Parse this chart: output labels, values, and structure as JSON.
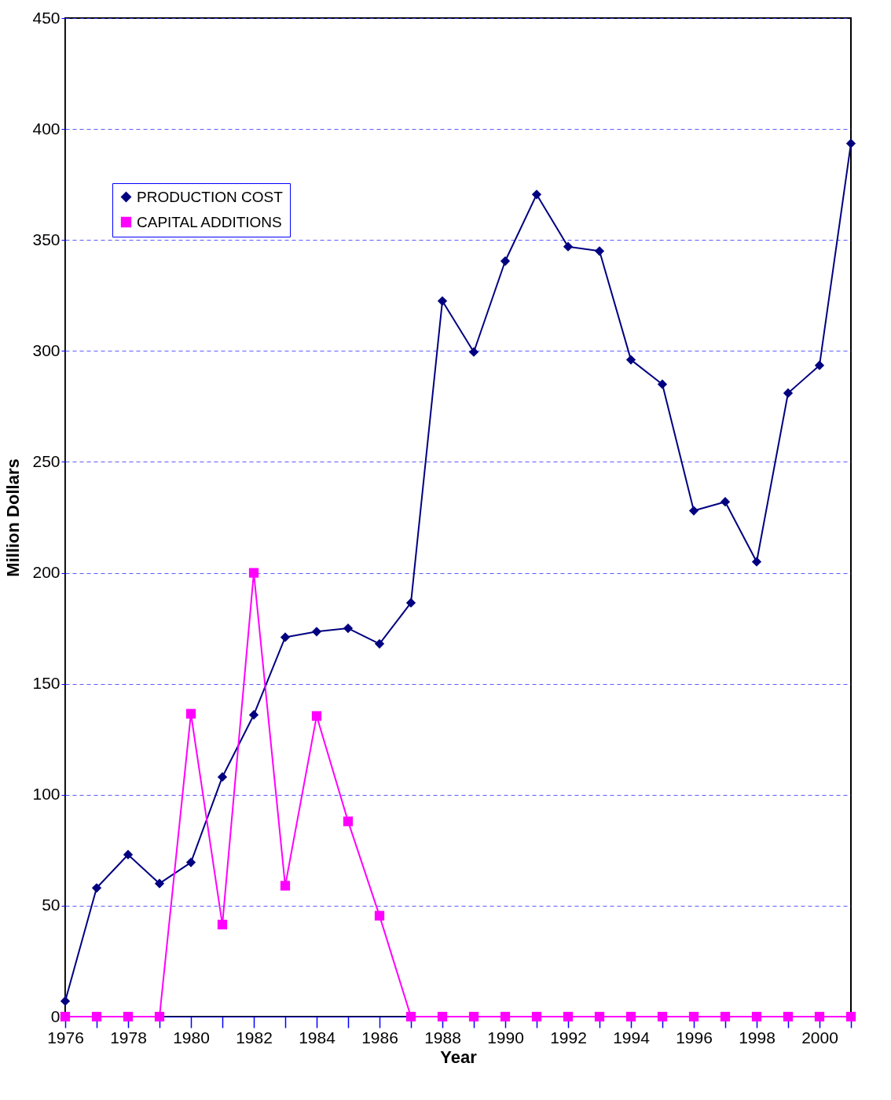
{
  "chart_data": {
    "type": "line",
    "xlabel": "Year",
    "ylabel": "Million Dollars",
    "x": [
      1976,
      1977,
      1978,
      1979,
      1980,
      1981,
      1982,
      1983,
      1984,
      1985,
      1986,
      1987,
      1988,
      1989,
      1990,
      1991,
      1992,
      1993,
      1994,
      1995,
      1996,
      1997,
      1998,
      1999,
      2000,
      2001
    ],
    "series": [
      {
        "name": "PRODUCTION COST",
        "color": "#000080",
        "marker": "diamond",
        "values": [
          7,
          58,
          73,
          60,
          69.5,
          108,
          136,
          171,
          173.5,
          175,
          168,
          186.5,
          322.5,
          299.5,
          340.5,
          370.5,
          347,
          345,
          296,
          285,
          228,
          232,
          205,
          281,
          293.5,
          393.5
        ]
      },
      {
        "name": "CAPITAL ADDITIONS",
        "color": "#ff00ff",
        "marker": "square",
        "values": [
          0,
          0,
          0,
          0,
          136.5,
          41.5,
          200,
          59,
          135.5,
          88,
          45.5,
          0,
          0,
          0,
          0,
          0,
          0,
          0,
          0,
          0,
          0,
          0,
          0,
          0,
          0,
          0
        ]
      }
    ],
    "xlim": [
      1976,
      2001
    ],
    "xticks": [
      1976,
      {
        "value": 1977,
        "label": null
      },
      1978,
      {
        "value": 1979,
        "label": null
      },
      1980,
      {
        "value": 1981,
        "label": null
      },
      1982,
      {
        "value": 1983,
        "label": null
      },
      1984,
      {
        "value": 1985,
        "label": null
      },
      1986,
      {
        "value": 1987,
        "label": null
      },
      1988,
      {
        "value": 1989,
        "label": null
      },
      1990,
      {
        "value": 1991,
        "label": null
      },
      1992,
      {
        "value": 1993,
        "label": null
      },
      1994,
      {
        "value": 1995,
        "label": null
      },
      1996,
      {
        "value": 1997,
        "label": null
      },
      1998,
      {
        "value": 1999,
        "label": null
      },
      2000,
      {
        "value": 2001,
        "label": null
      }
    ],
    "ylim": [
      0,
      450
    ],
    "yticks": [
      0,
      50,
      100,
      150,
      200,
      250,
      300,
      350,
      400,
      450
    ],
    "grid": "y",
    "legend": "top left",
    "line_style": "solid"
  }
}
